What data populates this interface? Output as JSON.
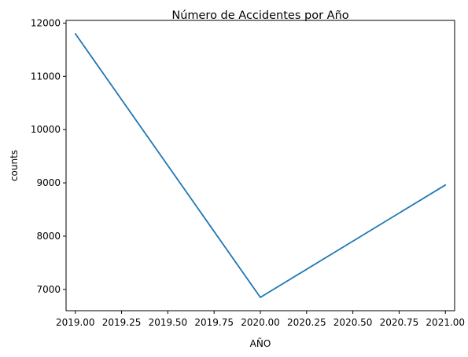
{
  "chart_data": {
    "type": "line",
    "title": "Número de Accidentes por Año",
    "xlabel": "AÑO",
    "ylabel": "counts",
    "x": [
      2019,
      2020,
      2021
    ],
    "series": [
      {
        "values": [
          11800,
          6850,
          8960
        ],
        "color": "#1f77b4"
      }
    ],
    "xlim": [
      2018.95,
      2021.05
    ],
    "ylim": [
      6600,
      12050
    ],
    "xticks": [
      2019.0,
      2019.25,
      2019.5,
      2019.75,
      2020.0,
      2020.25,
      2020.5,
      2020.75,
      2021.0
    ],
    "xtick_labels": [
      "2019.00",
      "2019.25",
      "2019.50",
      "2019.75",
      "2020.00",
      "2020.25",
      "2020.50",
      "2020.75",
      "2021.00"
    ],
    "yticks": [
      7000,
      8000,
      9000,
      10000,
      11000,
      12000
    ],
    "ytick_labels": [
      "7000",
      "8000",
      "9000",
      "10000",
      "11000",
      "12000"
    ],
    "grid": false,
    "legend": "none"
  }
}
